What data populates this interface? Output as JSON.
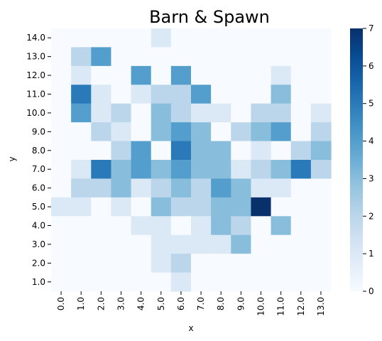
{
  "chart_data": {
    "type": "heatmap",
    "title": "Barn & Spawn",
    "xlabel": "x",
    "ylabel": "y",
    "x": [
      "0.0",
      "1.0",
      "2.0",
      "3.0",
      "4.0",
      "5.0",
      "6.0",
      "7.0",
      "8.0",
      "9.0",
      "10.0",
      "11.0",
      "12.0",
      "13.0"
    ],
    "y": [
      "14.0",
      "13.0",
      "12.0",
      "11.0",
      "10.0",
      "9.0",
      "8.0",
      "7.0",
      "6.0",
      "5.0",
      "4.0",
      "3.0",
      "2.0",
      "1.0"
    ],
    "values": [
      [
        0,
        0,
        0,
        0,
        0,
        1,
        0,
        0,
        0,
        0,
        0,
        0,
        0,
        0
      ],
      [
        0,
        2,
        4,
        0,
        0,
        0,
        0,
        0,
        0,
        0,
        0,
        0,
        0,
        0
      ],
      [
        0,
        1,
        0,
        0,
        4,
        0,
        4,
        0,
        0,
        0,
        0,
        1,
        0,
        0
      ],
      [
        0,
        5,
        1,
        0,
        1,
        2,
        2,
        4,
        0,
        0,
        0,
        3,
        0,
        0
      ],
      [
        0,
        4,
        1,
        2,
        0,
        3,
        2,
        1,
        1,
        0,
        2,
        2,
        0,
        1
      ],
      [
        0,
        0,
        2,
        1,
        0,
        3,
        4,
        3,
        0,
        2,
        3,
        4,
        0,
        2
      ],
      [
        0,
        0,
        0,
        2,
        4,
        0,
        5,
        3,
        3,
        0,
        1,
        0,
        2,
        3
      ],
      [
        0,
        1,
        5,
        3,
        4,
        3,
        4,
        3,
        3,
        1,
        2,
        3,
        5,
        2
      ],
      [
        0,
        2,
        2,
        3,
        1,
        2,
        3,
        2,
        4,
        3,
        1,
        1,
        0,
        0
      ],
      [
        1,
        1,
        0,
        1,
        0,
        3,
        2,
        2,
        3,
        3,
        7,
        0,
        0,
        0
      ],
      [
        0,
        0,
        0,
        0,
        1,
        1,
        0,
        1,
        3,
        2,
        0,
        3,
        0,
        0
      ],
      [
        0,
        0,
        0,
        0,
        0,
        1,
        1,
        1,
        1,
        3,
        0,
        0,
        0,
        0
      ],
      [
        0,
        0,
        0,
        0,
        0,
        1,
        2,
        0,
        0,
        0,
        0,
        0,
        0,
        0
      ],
      [
        0,
        0,
        0,
        0,
        0,
        0,
        1,
        0,
        0,
        0,
        0,
        0,
        0,
        0
      ]
    ],
    "zlim": [
      0,
      7
    ],
    "colorbar_ticks": [
      0,
      1,
      2,
      3,
      4,
      5,
      6,
      7
    ],
    "colormap": "Blues",
    "colors": {
      "low": "#f7fbff",
      "high": "#08306b"
    }
  }
}
